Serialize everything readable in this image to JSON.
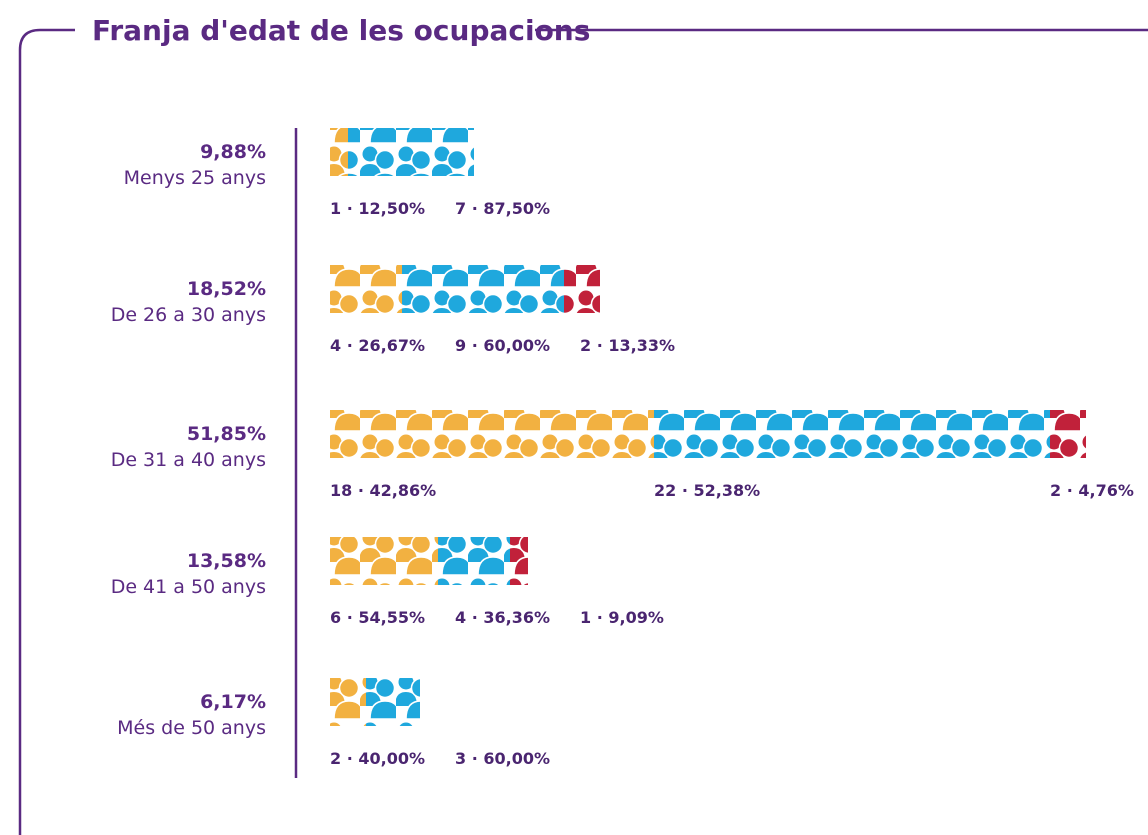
{
  "title": "Franja d'edat de les ocupacions",
  "rows": [
    {
      "percent": "9,88%",
      "label": "Menys 25 anys",
      "groups": [
        {
          "color": "#f2b141",
          "count": 1,
          "label": "1 · 12,50%"
        },
        {
          "color": "#1fa8dd",
          "count": 7,
          "label": "7 · 87,50%"
        }
      ]
    },
    {
      "percent": "18,52%",
      "label": "De 26 a 30 anys",
      "groups": [
        {
          "color": "#f2b141",
          "count": 4,
          "label": "4 · 26,67%"
        },
        {
          "color": "#1fa8dd",
          "count": 9,
          "label": "9 · 60,00%"
        },
        {
          "color": "#c1213a",
          "count": 2,
          "label": "2 · 13,33%"
        }
      ]
    },
    {
      "percent": "51,85%",
      "label": "De 31 a 40 anys",
      "groups": [
        {
          "color": "#f2b141",
          "count": 18,
          "label": "18 · 42,86%"
        },
        {
          "color": "#1fa8dd",
          "count": 22,
          "label": "22 · 52,38%"
        },
        {
          "color": "#c1213a",
          "count": 2,
          "label": "2 · 4,76%"
        }
      ]
    },
    {
      "percent": "13,58%",
      "label": "De 41 a 50 anys",
      "groups": [
        {
          "color": "#f2b141",
          "count": 6,
          "label": "6 · 54,55%"
        },
        {
          "color": "#1fa8dd",
          "count": 4,
          "label": "4 · 36,36%"
        },
        {
          "color": "#c1213a",
          "count": 1,
          "label": "1 · 9,09%"
        }
      ]
    },
    {
      "percent": "6,17%",
      "label": "Més de 50 anys",
      "groups": [
        {
          "color": "#f2b141",
          "count": 2,
          "label": "2 · 40,00%"
        },
        {
          "color": "#1fa8dd",
          "count": 3,
          "label": "3 · 60,00%"
        }
      ]
    }
  ]
}
